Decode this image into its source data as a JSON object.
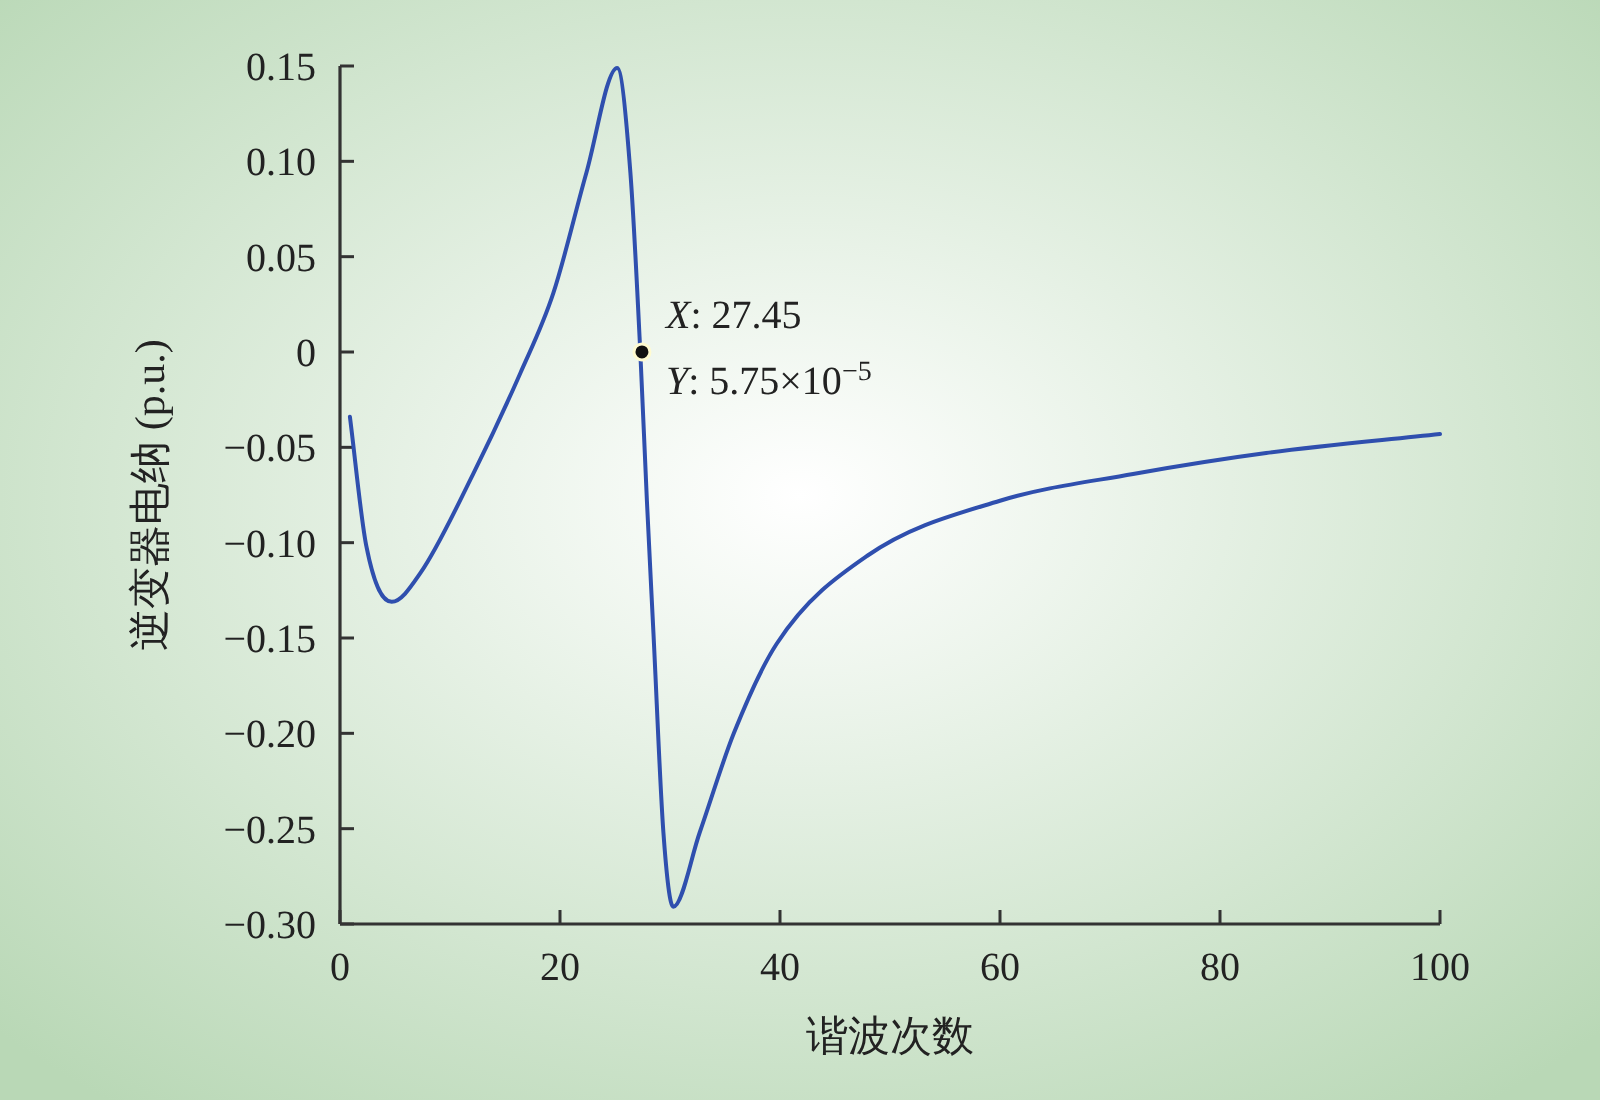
{
  "chart_data": {
    "type": "line",
    "xlabel": "谐波次数",
    "ylabel": "逆变器电纳 (p.u.)",
    "xlim": [
      0,
      100
    ],
    "ylim": [
      -0.3,
      0.15
    ],
    "xticks": [
      0,
      20,
      40,
      60,
      80,
      100
    ],
    "yticks": [
      {
        "value": 0.15,
        "label": "0.15"
      },
      {
        "value": 0.1,
        "label": "0.10"
      },
      {
        "value": 0.05,
        "label": "0.05"
      },
      0,
      {
        "value": -0.05,
        "label": "−0.05"
      },
      {
        "value": -0.1,
        "label": "−0.10"
      },
      {
        "value": -0.15,
        "label": "−0.15"
      },
      {
        "value": -0.2,
        "label": "−0.20"
      },
      {
        "value": -0.25,
        "label": "−0.25"
      },
      {
        "value": -0.3,
        "label": "−0.30"
      }
    ],
    "grid": false,
    "series": [
      {
        "color": "#2f4fae",
        "marker": "none",
        "x": [
          0.9,
          2.4,
          4.7,
          7.3,
          12.1,
          16.4,
          19.4,
          22.4,
          25.2,
          26.4,
          27.3,
          27.9,
          28.5,
          29.4,
          30.3,
          32.7,
          35.8,
          39.7,
          47.9,
          60,
          72.1,
          84.2,
          100
        ],
        "values": [
          -0.034,
          -0.102,
          -0.131,
          -0.116,
          -0.064,
          -0.011,
          0.031,
          0.094,
          0.149,
          0.094,
          0.0,
          -0.078,
          -0.148,
          -0.252,
          -0.291,
          -0.252,
          -0.2,
          -0.153,
          -0.107,
          -0.078,
          -0.064,
          -0.053,
          -0.043
        ]
      },
      {
        "type": "scatter",
        "color": "#111111",
        "marker": "circle",
        "x": [
          27.45
        ],
        "values": [
          5.75e-05
        ]
      }
    ],
    "annotations": [
      {
        "text": "X: 27.45",
        "x": 27.45,
        "y": 5.75e-05
      },
      {
        "text": "Y: 5.75×10$^{−5}$",
        "x": 27.45,
        "y": 5.75e-05
      }
    ]
  }
}
